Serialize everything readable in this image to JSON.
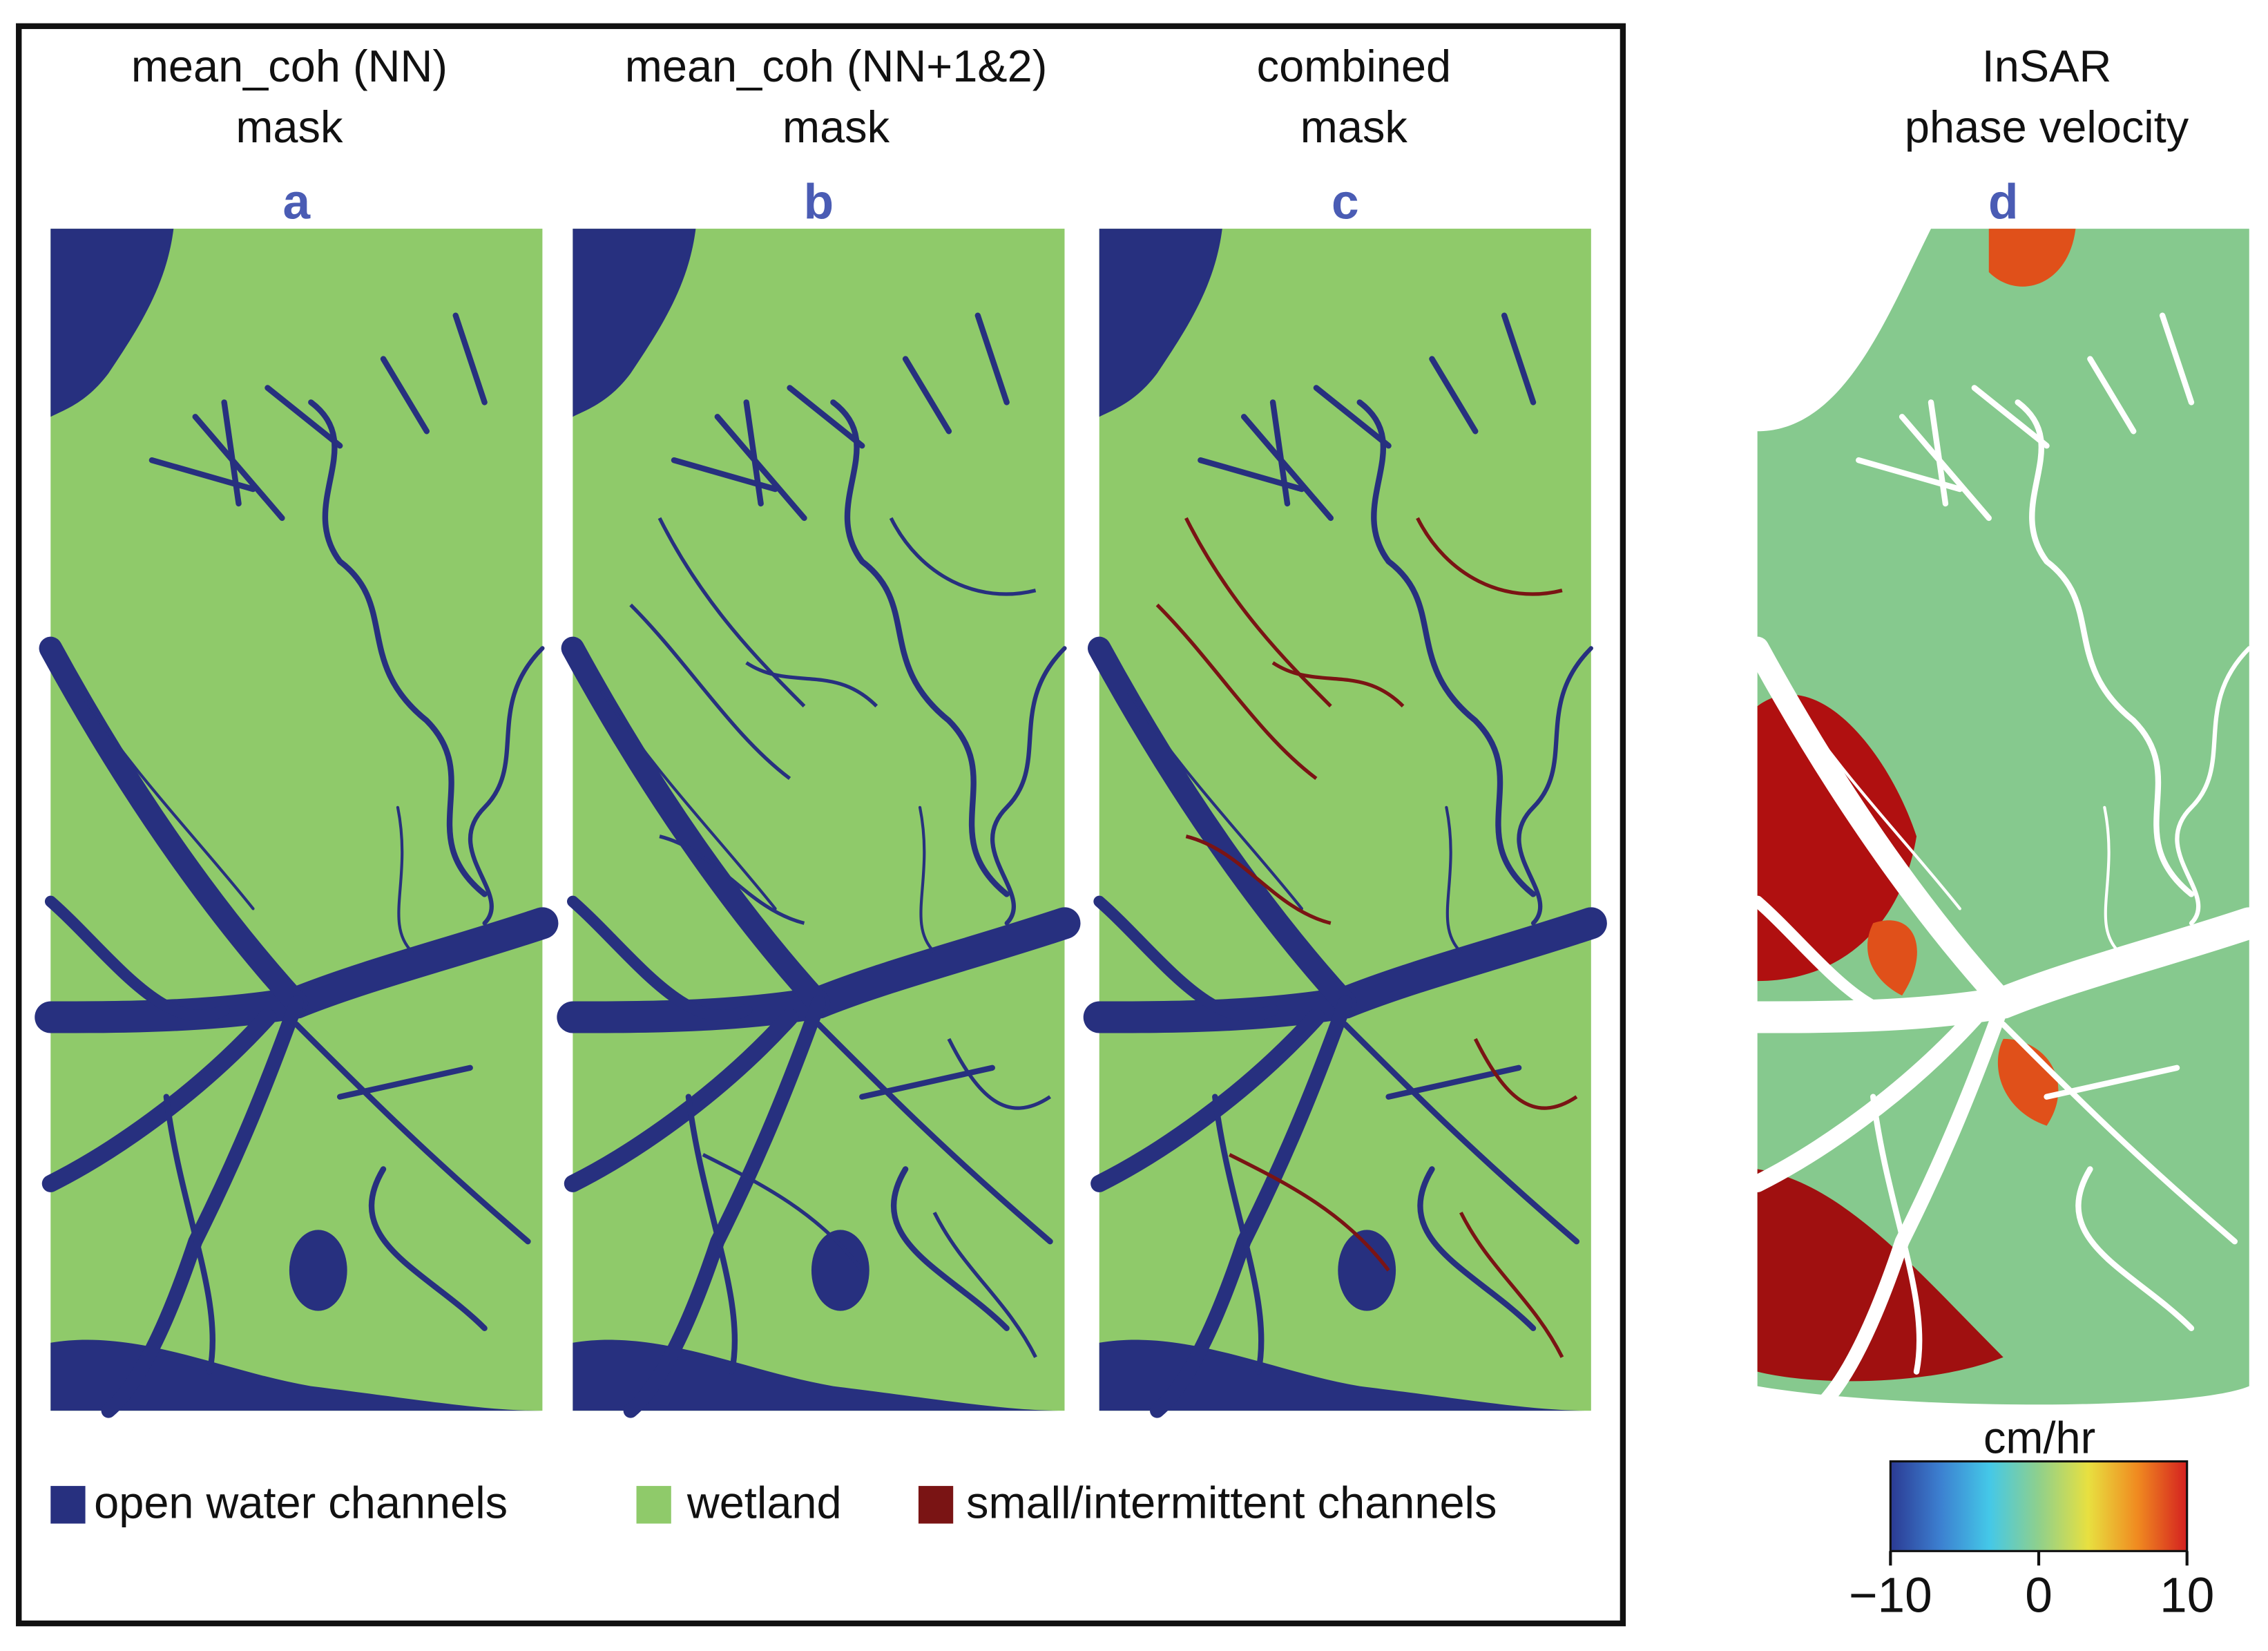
{
  "panels": [
    {
      "title": [
        "mean_coh (NN)",
        "mask"
      ],
      "letter": "a"
    },
    {
      "title": [
        "mean_coh (NN+1&2)",
        "mask"
      ],
      "letter": "b"
    },
    {
      "title": [
        "combined",
        "mask"
      ],
      "letter": "c"
    },
    {
      "title": [
        "InSAR",
        "phase velocity"
      ],
      "letter": "d"
    }
  ],
  "legend": [
    {
      "label": "open water channels",
      "color": "#27307f"
    },
    {
      "label": "wetland",
      "color": "#8fca6a"
    },
    {
      "label": "small/intermittent channels",
      "color": "#7a1414"
    }
  ],
  "colorbar": {
    "label": "cm/hr",
    "lim": [
      -10,
      10
    ],
    "ticks": [
      {
        "value": -10,
        "label": "−10"
      },
      0,
      10
    ],
    "colors": [
      "#2b3a93",
      "#3c7fd0",
      "#44c8e8",
      "#8fd08c",
      "#e8e040",
      "#f08a20",
      "#d42020"
    ]
  }
}
